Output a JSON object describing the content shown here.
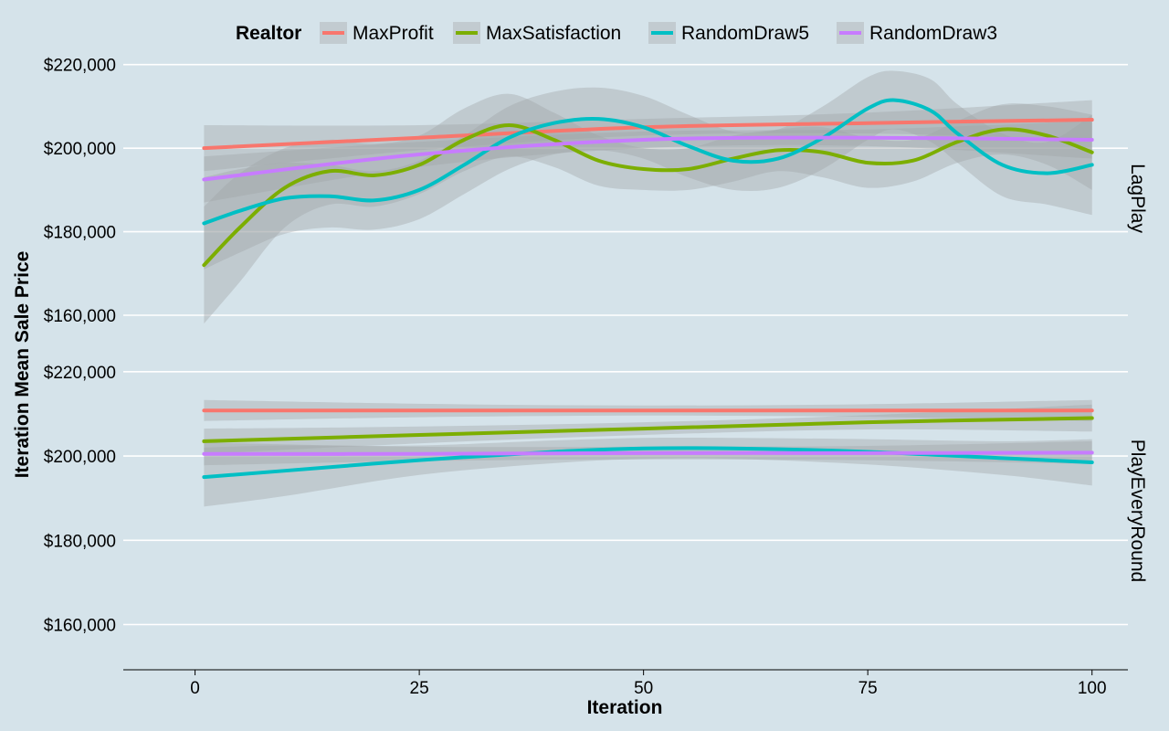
{
  "chart_data": {
    "type": "line",
    "xlabel": "Iteration",
    "ylabel": "Iteration Mean Sale Price",
    "xlim": [
      -8,
      104
    ],
    "x_ticks": [
      0,
      25,
      50,
      75,
      100
    ],
    "x_tick_labels": [
      "0",
      "25",
      "50",
      "75",
      "100"
    ],
    "y_ticks": [
      160000,
      180000,
      200000,
      220000
    ],
    "y_tick_labels": [
      "$160,000",
      "$180,000",
      "$200,000",
      "$220,000"
    ],
    "grid": true,
    "legend": {
      "title": "Realtor",
      "position": "top",
      "entries": [
        "MaxProfit",
        "MaxSatisfaction",
        "RandomDraw5",
        "RandomDraw3"
      ]
    },
    "series_colors": {
      "MaxProfit": "#f8766d",
      "MaxSatisfaction": "#7cae00",
      "RandomDraw5": "#00bfc4",
      "RandomDraw3": "#c77cff"
    },
    "ribbon_color": "#a0a4a8",
    "panels": [
      {
        "strip": "LagPlay",
        "ylim": [
          153000,
          223000
        ],
        "series": [
          {
            "name": "MaxProfit",
            "x": [
              1,
              25,
              50,
              75,
              100
            ],
            "y": [
              200000,
              202500,
              205000,
              206000,
              206800
            ],
            "lower": [
              194500,
              199500,
              203000,
              203500,
              202000
            ],
            "upper": [
              205500,
              205500,
              207000,
              208500,
              211500
            ]
          },
          {
            "name": "MaxSatisfaction",
            "x": [
              1,
              5,
              10,
              15,
              20,
              25,
              30,
              35,
              40,
              45,
              50,
              55,
              60,
              65,
              70,
              75,
              80,
              85,
              90,
              95,
              100
            ],
            "y": [
              172000,
              181000,
              190500,
              194500,
              193500,
              196000,
              202000,
              205500,
              202000,
              197000,
              195000,
              195000,
              197500,
              199500,
              199000,
              196500,
              197000,
              201500,
              204500,
              203000,
              199000
            ],
            "lower": [
              158000,
              168000,
              181000,
              186500,
              186000,
              189000,
              194500,
              198000,
              195500,
              191000,
              190000,
              190000,
              192000,
              194500,
              193000,
              190500,
              192000,
              196500,
              198500,
              196000,
              190000
            ],
            "upper": [
              186000,
              194000,
              200000,
              202000,
              201000,
              203000,
              209500,
              213000,
              208500,
              203000,
              200000,
              200000,
              203000,
              204500,
              205000,
              202500,
              202000,
              206500,
              210500,
              210000,
              208000
            ]
          },
          {
            "name": "RandomDraw5",
            "x": [
              1,
              5,
              10,
              15,
              20,
              25,
              30,
              35,
              40,
              45,
              50,
              55,
              60,
              65,
              70,
              75,
              78,
              82,
              85,
              90,
              95,
              100
            ],
            "y": [
              182000,
              185000,
              188000,
              188500,
              187500,
              190000,
              196000,
              202500,
              206000,
              207000,
              205000,
              200500,
              197000,
              197500,
              202500,
              209500,
              211500,
              209000,
              203500,
              196000,
              194000,
              196000
            ],
            "lower": [
              171000,
              175000,
              179500,
              181000,
              180500,
              183000,
              189000,
              195000,
              198500,
              199500,
              197500,
              193000,
              190000,
              190500,
              195000,
              202000,
              204500,
              201500,
              196500,
              188500,
              186500,
              184000
            ],
            "upper": [
              193000,
              195000,
              196500,
              196000,
              194500,
              197000,
              203000,
              210000,
              213500,
              214500,
              212500,
              208000,
              204000,
              204500,
              210000,
              217000,
              218500,
              216500,
              210500,
              203500,
              201500,
              208000
            ]
          },
          {
            "name": "RandomDraw3",
            "x": [
              1,
              25,
              50,
              75,
              100
            ],
            "y": [
              192500,
              198500,
              202000,
              202500,
              202000
            ],
            "lower": [
              187000,
              195500,
              200000,
              200500,
              197500
            ],
            "upper": [
              198000,
              201500,
              204000,
              204500,
              206500
            ]
          }
        ]
      },
      {
        "strip": "PlayEveryRound",
        "ylim": [
          151000,
          223000
        ],
        "series": [
          {
            "name": "MaxProfit",
            "x": [
              1,
              25,
              50,
              75,
              100
            ],
            "y": [
              210800,
              210800,
              210800,
              210800,
              210800
            ],
            "lower": [
              208300,
              209200,
              209600,
              209300,
              208300
            ],
            "upper": [
              213300,
              212400,
              212000,
              212300,
              213300
            ]
          },
          {
            "name": "MaxSatisfaction",
            "x": [
              1,
              25,
              50,
              75,
              100
            ],
            "y": [
              203500,
              205000,
              206500,
              208000,
              209000
            ],
            "lower": [
              200500,
              203000,
              205000,
              206300,
              205800
            ],
            "upper": [
              206500,
              207000,
              208000,
              209700,
              212200
            ]
          },
          {
            "name": "RandomDraw5",
            "x": [
              1,
              10,
              25,
              40,
              50,
              60,
              75,
              90,
              100
            ],
            "y": [
              195000,
              196500,
              199000,
              201000,
              201800,
              201800,
              201000,
              199500,
              198500
            ],
            "lower": [
              188000,
              190500,
              195500,
              198300,
              199300,
              199300,
              198000,
              195500,
              193000
            ],
            "upper": [
              202000,
              202500,
              202500,
              203700,
              204300,
              204300,
              204000,
              203500,
              204000
            ]
          },
          {
            "name": "RandomDraw3",
            "x": [
              1,
              25,
              50,
              75,
              100
            ],
            "y": [
              200500,
              200500,
              200700,
              200700,
              200800
            ],
            "lower": [
              197800,
              198800,
              199200,
              199000,
              198100
            ],
            "upper": [
              203200,
              202200,
              202200,
              202400,
              203500
            ]
          }
        ]
      }
    ]
  }
}
